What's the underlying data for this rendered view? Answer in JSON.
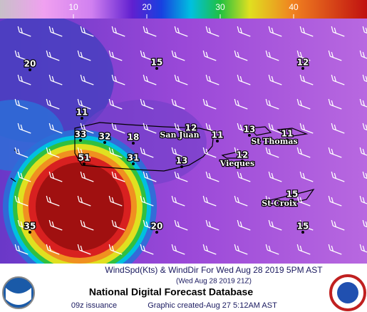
{
  "colorbar": {
    "range": [
      0,
      50
    ],
    "ticks": [
      10,
      20,
      30,
      40
    ]
  },
  "map": {
    "wind_labels": [
      20,
      15,
      12,
      11,
      12,
      11,
      13,
      11,
      33,
      32,
      18,
      51,
      31,
      13,
      12,
      15,
      35,
      20,
      15
    ],
    "places": [
      "San Juan",
      "St Thomas",
      "Vieques",
      "St Croix"
    ]
  },
  "footer": {
    "title": "WindSpd(Kts) & WindDir For Wed Aug 28 2019  5PM AST",
    "utc": "(Wed Aug 28 2019 21Z)",
    "database": "National Digital Forecast Database",
    "issuance": "09z issuance",
    "created": "Graphic created-Aug 27  5:12AM AST"
  }
}
